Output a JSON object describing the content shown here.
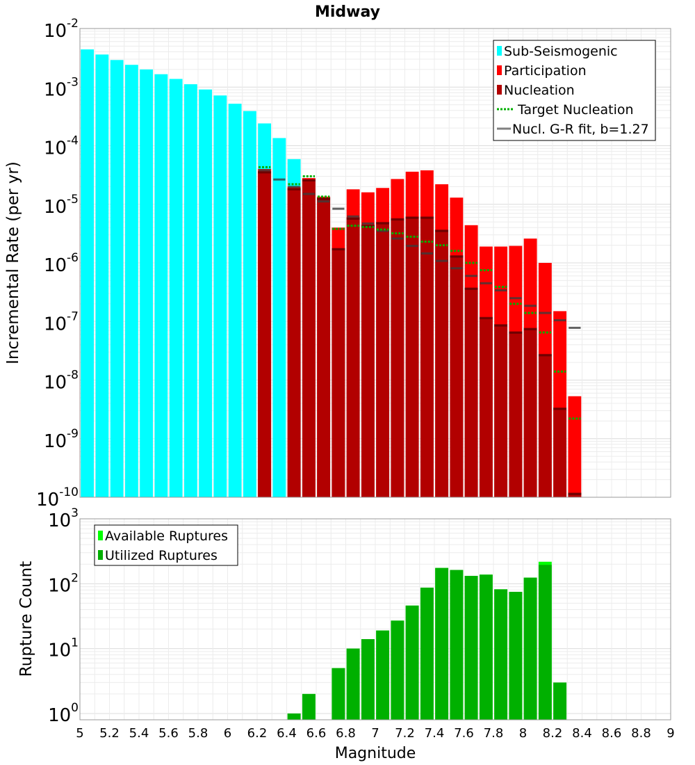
{
  "chart_data": [
    {
      "type": "bar",
      "title": "Midway",
      "xlabel": "",
      "ylabel": "Incremental Rate (per yr)",
      "yscale": "log",
      "ylim": [
        1e-10,
        0.01
      ],
      "xlim": [
        5,
        9
      ],
      "bin_width": 0.1,
      "y_tick_labels": [
        {
          "base": "10",
          "exp": "-2",
          "v": 0.01
        },
        {
          "base": "10",
          "exp": "-3",
          "v": 0.001
        },
        {
          "base": "10",
          "exp": "-4",
          "v": 0.0001
        },
        {
          "base": "10",
          "exp": "-5",
          "v": 1e-05
        },
        {
          "base": "10",
          "exp": "-6",
          "v": 1e-06
        },
        {
          "base": "10",
          "exp": "-7",
          "v": 1e-07
        },
        {
          "base": "10",
          "exp": "-8",
          "v": 1e-08
        },
        {
          "base": "10",
          "exp": "-9",
          "v": 1e-09
        },
        {
          "base": "10",
          "exp": "-10",
          "v": 1e-10
        }
      ],
      "legend": {
        "position": "top-right",
        "entries": [
          {
            "label": "Sub-Seismogenic",
            "color": "#00ffff",
            "marker": "square"
          },
          {
            "label": "Participation",
            "color": "#ff0000",
            "marker": "square"
          },
          {
            "label": "Nucleation",
            "color": "#b20000",
            "marker": "square"
          },
          {
            "label": "Target Nucleation",
            "color": "#00b000",
            "marker": "dotted-line"
          },
          {
            "label": "Nucl. G-R fit, b=1.27",
            "color": "#808080",
            "marker": "line"
          }
        ]
      },
      "colors": {
        "sub_seismogenic": "#00ffff",
        "participation": "#ff0000",
        "nucleation": "#b20000",
        "target": "#00b000",
        "gr_fit": "#808080",
        "nucl_marker": "#3a0000"
      },
      "series": [
        {
          "name": "Sub-Seismogenic",
          "points": [
            {
              "x": 5.05,
              "y": 0.0044
            },
            {
              "x": 5.15,
              "y": 0.0036
            },
            {
              "x": 5.25,
              "y": 0.0029
            },
            {
              "x": 5.35,
              "y": 0.0024
            },
            {
              "x": 5.45,
              "y": 0.002
            },
            {
              "x": 5.55,
              "y": 0.00166
            },
            {
              "x": 5.65,
              "y": 0.00138
            },
            {
              "x": 5.75,
              "y": 0.00112
            },
            {
              "x": 5.85,
              "y": 0.00091
            },
            {
              "x": 5.95,
              "y": 0.00072
            },
            {
              "x": 6.05,
              "y": 0.00052
            },
            {
              "x": 6.15,
              "y": 0.00039
            },
            {
              "x": 6.25,
              "y": 0.00024
            },
            {
              "x": 6.35,
              "y": 0.000135
            },
            {
              "x": 6.45,
              "y": 5.9e-05
            }
          ]
        },
        {
          "name": "Participation",
          "points": [
            {
              "x": 6.25,
              "y": 4e-05
            },
            {
              "x": 6.45,
              "y": 2e-05
            },
            {
              "x": 6.55,
              "y": 2.8e-05
            },
            {
              "x": 6.65,
              "y": 1.35e-05
            },
            {
              "x": 6.75,
              "y": 4e-06
            },
            {
              "x": 6.85,
              "y": 1.8e-05
            },
            {
              "x": 6.95,
              "y": 1.6e-05
            },
            {
              "x": 7.05,
              "y": 1.9e-05
            },
            {
              "x": 7.15,
              "y": 2.7e-05
            },
            {
              "x": 7.25,
              "y": 3.6e-05
            },
            {
              "x": 7.35,
              "y": 3.8e-05
            },
            {
              "x": 7.45,
              "y": 2.2e-05
            },
            {
              "x": 7.55,
              "y": 1.3e-05
            },
            {
              "x": 7.65,
              "y": 4.4e-06
            },
            {
              "x": 7.75,
              "y": 1.9e-06
            },
            {
              "x": 7.85,
              "y": 1.9e-06
            },
            {
              "x": 7.95,
              "y": 1.95e-06
            },
            {
              "x": 8.05,
              "y": 2.6e-06
            },
            {
              "x": 8.15,
              "y": 1e-06
            },
            {
              "x": 8.25,
              "y": 1.5e-07
            },
            {
              "x": 8.35,
              "y": 5.3e-09
            }
          ]
        },
        {
          "name": "Nucleation",
          "points": [
            {
              "x": 6.25,
              "y": 3.7e-05
            },
            {
              "x": 6.45,
              "y": 1.9e-05
            },
            {
              "x": 6.55,
              "y": 2.7e-05
            },
            {
              "x": 6.65,
              "y": 1.3e-05
            },
            {
              "x": 6.75,
              "y": 1.8e-06
            },
            {
              "x": 6.85,
              "y": 6e-06
            },
            {
              "x": 6.95,
              "y": 4.5e-06
            },
            {
              "x": 7.05,
              "y": 5e-06
            },
            {
              "x": 7.15,
              "y": 5.8e-06
            },
            {
              "x": 7.25,
              "y": 6.2e-06
            },
            {
              "x": 7.35,
              "y": 6.2e-06
            },
            {
              "x": 7.45,
              "y": 3.7e-06
            },
            {
              "x": 7.55,
              "y": 1.35e-06
            },
            {
              "x": 7.65,
              "y": 3.8e-07
            },
            {
              "x": 7.75,
              "y": 1.2e-07
            },
            {
              "x": 7.85,
              "y": 9e-08
            },
            {
              "x": 7.95,
              "y": 6.8e-08
            },
            {
              "x": 8.05,
              "y": 7.8e-08
            },
            {
              "x": 8.15,
              "y": 2.8e-08
            },
            {
              "x": 8.25,
              "y": 3.4e-09
            },
            {
              "x": 8.35,
              "y": 1.2e-10
            }
          ]
        },
        {
          "name": "Target Nucleation",
          "points": [
            {
              "x": 6.25,
              "y": 4.3e-05
            },
            {
              "x": 6.45,
              "y": 2.2e-05
            },
            {
              "x": 6.55,
              "y": 3e-05
            },
            {
              "x": 6.65,
              "y": 1.35e-05
            },
            {
              "x": 6.75,
              "y": 3.8e-06
            },
            {
              "x": 6.85,
              "y": 4.3e-06
            },
            {
              "x": 6.95,
              "y": 4.1e-06
            },
            {
              "x": 7.05,
              "y": 3.7e-06
            },
            {
              "x": 7.15,
              "y": 3.2e-06
            },
            {
              "x": 7.25,
              "y": 2.8e-06
            },
            {
              "x": 7.35,
              "y": 2.3e-06
            },
            {
              "x": 7.45,
              "y": 2e-06
            },
            {
              "x": 7.55,
              "y": 1.6e-06
            },
            {
              "x": 7.65,
              "y": 1e-06
            },
            {
              "x": 7.75,
              "y": 7.5e-07
            },
            {
              "x": 7.85,
              "y": 3.9e-07
            },
            {
              "x": 7.95,
              "y": 2e-07
            },
            {
              "x": 8.05,
              "y": 1.4e-07
            },
            {
              "x": 8.15,
              "y": 6.5e-08
            },
            {
              "x": 8.25,
              "y": 1.4e-08
            },
            {
              "x": 8.35,
              "y": 2.2e-09
            }
          ]
        },
        {
          "name": "Nucl. G-R fit, b=1.27",
          "points": [
            {
              "x": 6.25,
              "y": 3.8e-05
            },
            {
              "x": 6.35,
              "y": 2.65e-05
            },
            {
              "x": 6.45,
              "y": 1.98e-05
            },
            {
              "x": 6.55,
              "y": 1.5e-05
            },
            {
              "x": 6.65,
              "y": 1.12e-05
            },
            {
              "x": 6.75,
              "y": 8.4e-06
            },
            {
              "x": 6.85,
              "y": 6.2e-06
            },
            {
              "x": 6.95,
              "y": 4.7e-06
            },
            {
              "x": 7.05,
              "y": 3.5e-06
            },
            {
              "x": 7.15,
              "y": 2.6e-06
            },
            {
              "x": 7.25,
              "y": 1.95e-06
            },
            {
              "x": 7.35,
              "y": 1.45e-06
            },
            {
              "x": 7.45,
              "y": 1.08e-06
            },
            {
              "x": 7.55,
              "y": 8.1e-07
            },
            {
              "x": 7.65,
              "y": 6e-07
            },
            {
              "x": 7.75,
              "y": 4.5e-07
            },
            {
              "x": 7.85,
              "y": 3.4e-07
            },
            {
              "x": 7.95,
              "y": 2.5e-07
            },
            {
              "x": 8.05,
              "y": 1.85e-07
            },
            {
              "x": 8.15,
              "y": 1.4e-07
            },
            {
              "x": 8.25,
              "y": 1.05e-07
            },
            {
              "x": 8.35,
              "y": 7.8e-08
            }
          ]
        }
      ]
    },
    {
      "type": "bar",
      "title": "",
      "xlabel": "Magnitude",
      "ylabel": "Rupture Count",
      "yscale": "log",
      "ylim": [
        0.8,
        1000
      ],
      "xlim": [
        5,
        9
      ],
      "bin_width": 0.1,
      "x_ticks": [
        5,
        5.2,
        5.4,
        5.6,
        5.8,
        6,
        6.2,
        6.4,
        6.6,
        6.8,
        7,
        7.2,
        7.4,
        7.6,
        7.8,
        8,
        8.2,
        8.4,
        8.6,
        8.8,
        9
      ],
      "x_tick_labels": [
        "5",
        "5.2",
        "5.4",
        "5.6",
        "5.8",
        "6",
        "6.2",
        "6.4",
        "6.6",
        "6.8",
        "7",
        "7.2",
        "7.4",
        "7.6",
        "7.8",
        "8",
        "8.2",
        "8.4",
        "8.6",
        "8.8",
        "9"
      ],
      "y_tick_labels": [
        {
          "base": "10",
          "exp": "3",
          "v": 1000
        },
        {
          "base": "10",
          "exp": "2",
          "v": 100
        },
        {
          "base": "10",
          "exp": "1",
          "v": 10
        },
        {
          "base": "10",
          "exp": "0",
          "v": 1
        }
      ],
      "legend": {
        "position": "top-left",
        "entries": [
          {
            "label": "Available Ruptures",
            "color": "#00ff00",
            "marker": "square"
          },
          {
            "label": "Utilized Ruptures",
            "color": "#00b000",
            "marker": "square"
          }
        ]
      },
      "colors": {
        "available": "#00ff00",
        "utilized": "#00b000"
      },
      "series": [
        {
          "name": "Available Ruptures",
          "points": [
            {
              "x": 6.45,
              "y": 1
            },
            {
              "x": 6.55,
              "y": 2
            },
            {
              "x": 6.75,
              "y": 5
            },
            {
              "x": 6.85,
              "y": 10
            },
            {
              "x": 6.95,
              "y": 14
            },
            {
              "x": 7.05,
              "y": 19
            },
            {
              "x": 7.15,
              "y": 27
            },
            {
              "x": 7.25,
              "y": 46
            },
            {
              "x": 7.35,
              "y": 87
            },
            {
              "x": 7.45,
              "y": 175
            },
            {
              "x": 7.55,
              "y": 163
            },
            {
              "x": 7.65,
              "y": 132
            },
            {
              "x": 7.75,
              "y": 138
            },
            {
              "x": 7.85,
              "y": 82
            },
            {
              "x": 7.95,
              "y": 75
            },
            {
              "x": 8.05,
              "y": 124
            },
            {
              "x": 8.15,
              "y": 218
            },
            {
              "x": 8.25,
              "y": 3
            }
          ]
        },
        {
          "name": "Utilized Ruptures",
          "points": [
            {
              "x": 6.45,
              "y": 1
            },
            {
              "x": 6.55,
              "y": 2
            },
            {
              "x": 6.75,
              "y": 5
            },
            {
              "x": 6.85,
              "y": 10
            },
            {
              "x": 6.95,
              "y": 14
            },
            {
              "x": 7.05,
              "y": 19
            },
            {
              "x": 7.15,
              "y": 27
            },
            {
              "x": 7.25,
              "y": 46
            },
            {
              "x": 7.35,
              "y": 87
            },
            {
              "x": 7.45,
              "y": 175
            },
            {
              "x": 7.55,
              "y": 163
            },
            {
              "x": 7.65,
              "y": 132
            },
            {
              "x": 7.75,
              "y": 138
            },
            {
              "x": 7.85,
              "y": 82
            },
            {
              "x": 7.95,
              "y": 75
            },
            {
              "x": 8.05,
              "y": 124
            },
            {
              "x": 8.15,
              "y": 195
            },
            {
              "x": 8.25,
              "y": 3
            }
          ]
        }
      ]
    }
  ]
}
